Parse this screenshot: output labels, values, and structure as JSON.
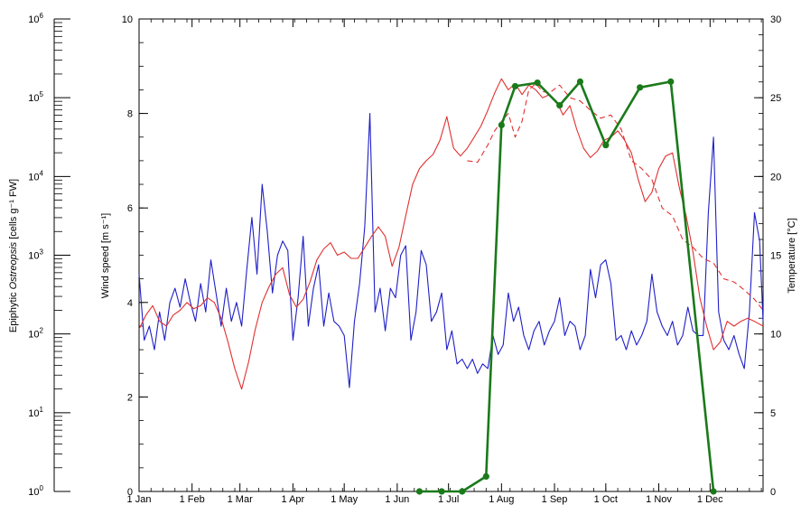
{
  "chart_data": {
    "type": "line",
    "x_axis": {
      "tick_labels": [
        "1 Jan",
        "1 Feb",
        "1 Mar",
        "1 Apr",
        "1 May",
        "1 Jun",
        "1 Jul",
        "1 Aug",
        "1 Sep",
        "1 Oct",
        "1 Nov",
        "1 Dec"
      ],
      "tick_days": [
        0,
        31,
        59,
        90,
        120,
        151,
        181,
        212,
        243,
        273,
        304,
        334
      ],
      "range_days": [
        0,
        365
      ]
    },
    "axes": {
      "left_outer": {
        "label_prefix": "Epiphytic ",
        "label_italic": "Ostreopsis",
        "label_suffix": " [cells g⁻¹ FW]",
        "scale": "log",
        "range": [
          1,
          1000000
        ],
        "tick_labels": [
          {
            "base": "10",
            "exp": "0"
          },
          {
            "base": "10",
            "exp": "1"
          },
          {
            "base": "10",
            "exp": "2"
          },
          {
            "base": "10",
            "exp": "3"
          },
          {
            "base": "10",
            "exp": "4"
          },
          {
            "base": "10",
            "exp": "5"
          },
          {
            "base": "10",
            "exp": "6"
          }
        ]
      },
      "left_inner": {
        "label": "Wind speed [m s⁻¹]",
        "scale": "linear",
        "range": [
          0,
          10
        ],
        "tick_labels": [
          "0",
          "2",
          "4",
          "6",
          "8",
          "10"
        ]
      },
      "right": {
        "label": "Temperature [°C]",
        "scale": "linear",
        "range": [
          0,
          30
        ],
        "tick_labels": [
          "0",
          "5",
          "10",
          "15",
          "20",
          "25",
          "30"
        ]
      }
    },
    "series": [
      {
        "axis": "left_inner",
        "style": "solid",
        "color": "#1f1fc8",
        "width": 1.1,
        "x_days": [
          0,
          3,
          6,
          9,
          12,
          15,
          18,
          21,
          24,
          27,
          30,
          33,
          36,
          39,
          42,
          45,
          48,
          51,
          54,
          57,
          60,
          63,
          66,
          69,
          72,
          75,
          78,
          81,
          84,
          87,
          90,
          93,
          96,
          99,
          102,
          105,
          108,
          111,
          114,
          117,
          120,
          123,
          126,
          129,
          132,
          135,
          138,
          141,
          144,
          147,
          150,
          153,
          156,
          159,
          162,
          165,
          168,
          171,
          174,
          177,
          180,
          183,
          186,
          189,
          192,
          195,
          198,
          201,
          204,
          207,
          210,
          213,
          216,
          219,
          222,
          225,
          228,
          231,
          234,
          237,
          240,
          243,
          246,
          249,
          252,
          255,
          258,
          261,
          264,
          267,
          270,
          273,
          276,
          279,
          282,
          285,
          288,
          291,
          294,
          297,
          300,
          303,
          306,
          309,
          312,
          315,
          318,
          321,
          324,
          327,
          330,
          333,
          336,
          339,
          342,
          345,
          348,
          351,
          354,
          357,
          360,
          363,
          365
        ],
        "y": [
          4.6,
          3.2,
          3.5,
          3.0,
          3.8,
          3.2,
          4.0,
          4.3,
          3.9,
          4.5,
          4.0,
          3.6,
          4.4,
          3.8,
          4.9,
          4.2,
          3.5,
          4.3,
          3.6,
          4.0,
          3.5,
          4.7,
          5.8,
          4.6,
          6.5,
          5.5,
          4.2,
          5.0,
          5.3,
          5.1,
          3.2,
          4.1,
          5.4,
          3.5,
          4.3,
          4.8,
          3.5,
          4.2,
          3.6,
          3.5,
          3.3,
          2.2,
          3.6,
          4.4,
          5.6,
          8.0,
          3.8,
          4.3,
          3.4,
          4.3,
          4.1,
          5.0,
          5.2,
          3.2,
          3.8,
          5.1,
          4.8,
          3.6,
          3.8,
          4.2,
          3.0,
          3.4,
          2.7,
          2.8,
          2.6,
          2.8,
          2.5,
          2.7,
          2.6,
          3.3,
          2.9,
          3.1,
          4.2,
          3.6,
          3.9,
          3.3,
          3.0,
          3.4,
          3.6,
          3.1,
          3.4,
          3.6,
          4.1,
          3.3,
          3.6,
          3.5,
          3.0,
          3.3,
          4.7,
          4.1,
          4.8,
          4.9,
          4.4,
          3.2,
          3.3,
          3.0,
          3.4,
          3.1,
          3.3,
          3.6,
          4.6,
          3.8,
          3.5,
          3.3,
          3.6,
          3.1,
          3.3,
          3.9,
          3.4,
          3.3,
          3.3,
          5.9,
          7.5,
          3.8,
          3.2,
          3.0,
          3.3,
          2.9,
          2.6,
          3.8,
          5.9,
          5.3,
          3.6
        ]
      },
      {
        "axis": "right",
        "style": "solid",
        "color": "#e03030",
        "width": 1.1,
        "x_days": [
          0,
          4,
          8,
          12,
          16,
          20,
          24,
          28,
          32,
          36,
          40,
          44,
          48,
          52,
          56,
          60,
          64,
          68,
          72,
          76,
          80,
          84,
          88,
          92,
          96,
          100,
          104,
          108,
          112,
          116,
          120,
          124,
          128,
          132,
          136,
          140,
          144,
          148,
          152,
          156,
          160,
          164,
          168,
          172,
          176,
          180,
          184,
          188,
          192,
          196,
          200,
          204,
          208,
          212,
          216,
          220,
          224,
          228,
          232,
          236,
          240,
          244,
          248,
          252,
          256,
          260,
          264,
          268,
          272,
          276,
          280,
          284,
          288,
          292,
          296,
          300,
          304,
          308,
          312,
          316,
          320,
          324,
          328,
          332,
          336,
          340,
          344,
          348,
          352,
          356,
          360,
          365
        ],
        "y": [
          10.3,
          11.2,
          11.8,
          10.8,
          10.5,
          11.2,
          11.5,
          12.0,
          11.6,
          11.8,
          12.3,
          12.0,
          11.0,
          9.5,
          7.8,
          6.5,
          8.2,
          10.3,
          12.0,
          13.0,
          13.8,
          14.2,
          12.5,
          11.7,
          12.2,
          13.3,
          14.7,
          15.4,
          15.8,
          15.0,
          15.2,
          14.8,
          14.8,
          15.5,
          16.2,
          16.8,
          16.2,
          14.3,
          15.5,
          17.5,
          19.5,
          20.5,
          21.0,
          21.4,
          22.3,
          23.8,
          21.8,
          21.3,
          21.8,
          22.5,
          23.2,
          24.2,
          25.3,
          26.2,
          25.5,
          25.9,
          25.2,
          25.8,
          25.5,
          25.0,
          25.2,
          24.8,
          23.9,
          24.5,
          23.0,
          21.8,
          21.2,
          21.6,
          22.3,
          22.5,
          22.9,
          22.3,
          21.5,
          19.8,
          18.4,
          19.0,
          20.5,
          21.3,
          21.5,
          19.3,
          17.5,
          15.2,
          12.3,
          10.5,
          9.0,
          9.5,
          10.8,
          10.5,
          10.8,
          11.0,
          10.8,
          10.5
        ]
      },
      {
        "axis": "right",
        "style": "dashed",
        "color": "#e03030",
        "width": 1.1,
        "x_days": [
          192,
          198,
          204,
          208,
          212,
          216,
          220,
          224,
          228,
          232,
          236,
          240,
          246,
          252,
          258,
          264,
          270,
          276,
          282,
          288,
          294,
          300,
          306,
          312,
          318,
          324,
          330,
          336,
          342,
          348,
          354,
          360,
          365
        ],
        "y": [
          21.0,
          20.9,
          22.0,
          22.9,
          23.5,
          24.0,
          22.5,
          23.5,
          25.5,
          25.9,
          25.4,
          25.3,
          25.8,
          25.0,
          24.8,
          24.2,
          23.7,
          23.9,
          23.0,
          21.0,
          20.5,
          19.8,
          18.0,
          17.5,
          16.0,
          15.5,
          14.8,
          14.5,
          13.5,
          13.3,
          12.8,
          12.2,
          11.5
        ]
      },
      {
        "axis": "left_outer",
        "style": "solid",
        "color": "#1a7a1a",
        "width": 2.6,
        "markers": true,
        "x_days": [
          164,
          177,
          189,
          203,
          212,
          220,
          233,
          246,
          258,
          273,
          293,
          311,
          336
        ],
        "y": [
          1.0,
          1.0,
          1.0,
          1.55,
          45000,
          140000,
          155000,
          80000,
          160000,
          25000,
          135000,
          160000,
          1.0
        ]
      }
    ]
  }
}
